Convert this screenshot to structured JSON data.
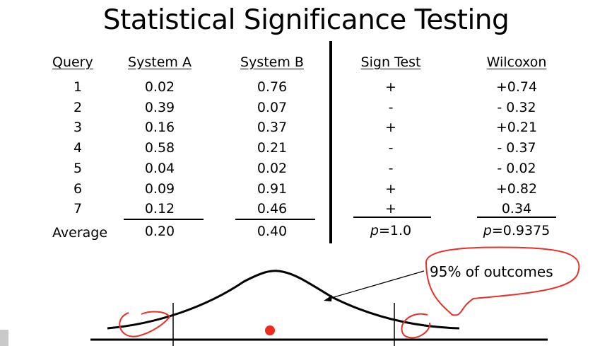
{
  "title": "Statistical Significance Testing",
  "table": {
    "headers": {
      "query": "Query",
      "system_a": "System A",
      "system_b": "System B",
      "sign_test": "Sign Test",
      "wilcoxon": "Wilcoxon"
    },
    "rows": [
      {
        "query": "1",
        "a": "0.02",
        "b": "0.76",
        "sign": "+",
        "wilcoxon": "+0.74"
      },
      {
        "query": "2",
        "a": "0.39",
        "b": "0.07",
        "sign": "-",
        "wilcoxon": "- 0.32"
      },
      {
        "query": "3",
        "a": "0.16",
        "b": "0.37",
        "sign": "+",
        "wilcoxon": "+0.21"
      },
      {
        "query": "4",
        "a": "0.58",
        "b": "0.21",
        "sign": "-",
        "wilcoxon": "- 0.37"
      },
      {
        "query": "5",
        "a": "0.04",
        "b": "0.02",
        "sign": "-",
        "wilcoxon": "- 0.02"
      },
      {
        "query": "6",
        "a": "0.09",
        "b": "0.91",
        "sign": "+",
        "wilcoxon": "+0.82"
      },
      {
        "query": "7",
        "a": "0.12",
        "b": "0.46",
        "sign": "+",
        "wilcoxon": "0.34"
      }
    ],
    "summary": {
      "label": "Average",
      "a": "0.20",
      "b": "0.40",
      "sign_p_letter": "p",
      "sign_p_value": "=1.0",
      "wilcoxon_p_letter": "p",
      "wilcoxon_p_value": "=0.9375"
    }
  },
  "annotation": "95% of outcomes",
  "colors": {
    "ink": "#000000",
    "marker_red": "#e8302a",
    "marker_dot": "#ee2a1c"
  }
}
